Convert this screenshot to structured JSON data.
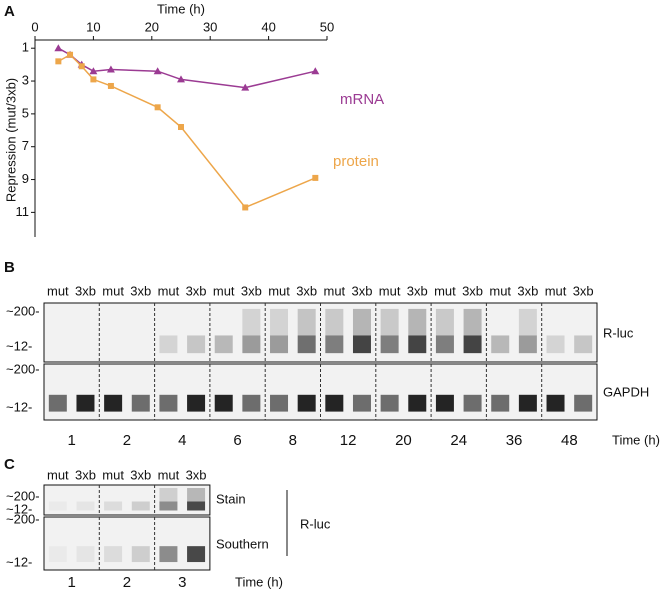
{
  "chart_data": {
    "type": "line",
    "x_label": "Time (h)",
    "y_label": "Repression (mut/3xb)",
    "x": [
      4,
      6,
      8,
      10,
      13,
      21,
      25,
      36,
      48
    ],
    "series": [
      {
        "name": "mRNA",
        "color": "#9b3b93",
        "marker": "triangle",
        "values": [
          1.0,
          1.4,
          2.0,
          2.4,
          2.3,
          2.4,
          2.9,
          3.4,
          2.4
        ]
      },
      {
        "name": "protein",
        "color": "#eda64a",
        "marker": "square",
        "values": [
          1.8,
          1.4,
          2.1,
          2.9,
          3.3,
          4.6,
          5.8,
          10.7,
          8.9
        ]
      }
    ],
    "xlim": [
      0,
      50
    ],
    "xticks": [
      0,
      10,
      20,
      30,
      40,
      50
    ],
    "ylim": [
      0.5,
      12.5
    ],
    "yticks": [
      1,
      3,
      5,
      7,
      9,
      11
    ],
    "y_reversed": true,
    "x_axis_top": true
  },
  "panel_labels": [
    "A",
    "B",
    "C"
  ],
  "panel_b": {
    "lane_labels": [
      "mut",
      "3xb"
    ],
    "times": [
      1,
      2,
      4,
      6,
      8,
      12,
      20,
      24,
      36,
      48
    ],
    "time_label": "Time (h)",
    "markers": [
      "~200-",
      "~12-"
    ],
    "rows": [
      "R-luc",
      "GAPDH"
    ]
  },
  "panel_c": {
    "lane_labels": [
      "mut",
      "3xb"
    ],
    "times": [
      1,
      2,
      3
    ],
    "time_label": "Time (h)",
    "markers": [
      "~200-",
      "~12-"
    ],
    "rows": [
      "Stain",
      "Southern"
    ],
    "group_label": "R-luc"
  }
}
